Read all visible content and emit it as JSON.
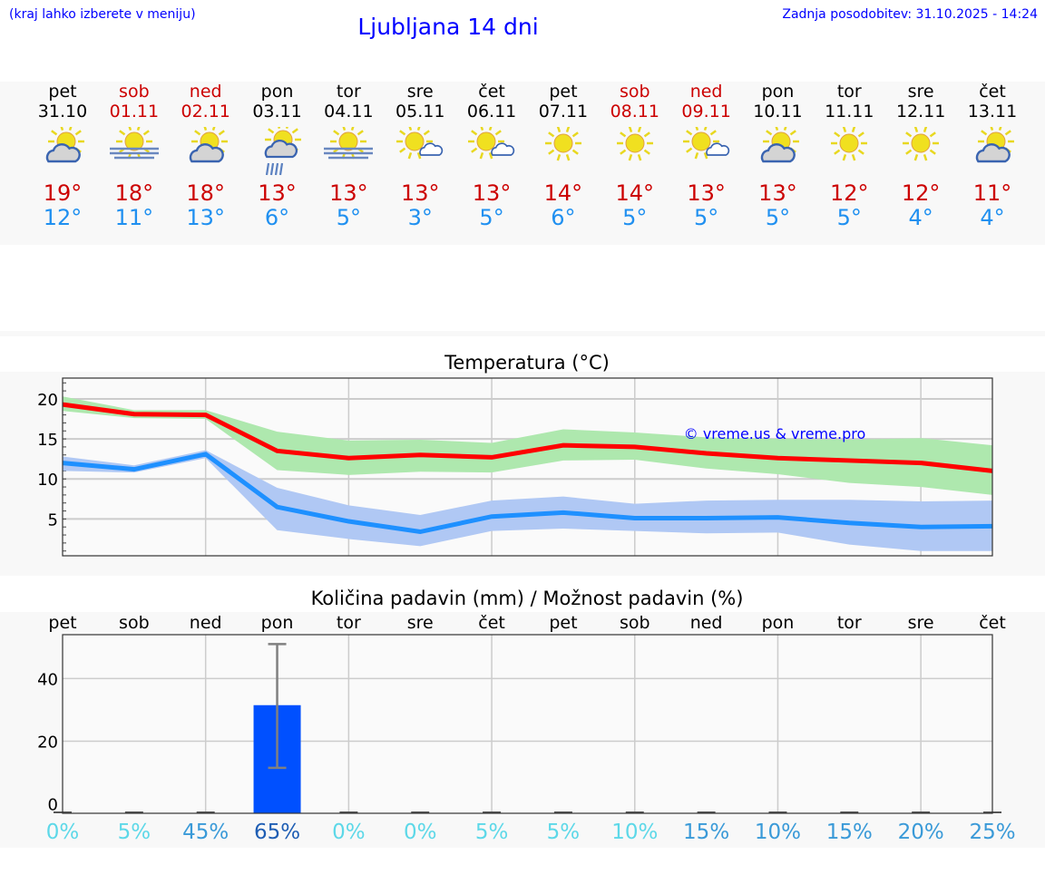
{
  "header": {
    "hint": "(kraj lahko izberete v meniju)",
    "title": "Ljubljana 14 dni",
    "updated": "Zadnja posodobitev: 31.10.2025 - 14:24"
  },
  "colors": {
    "weekday": "#000000",
    "weekend": "#cc0000",
    "high": "#cc0000",
    "low": "#2090f0",
    "link": "#0000ff"
  },
  "days": [
    {
      "name": "pet",
      "date": "31.10",
      "weekend": false,
      "icon": "partly-cloudy-icon",
      "high": "19°",
      "low": "12°"
    },
    {
      "name": "sob",
      "date": "01.11",
      "weekend": true,
      "icon": "fog-sun-icon",
      "high": "18°",
      "low": "11°"
    },
    {
      "name": "ned",
      "date": "02.11",
      "weekend": true,
      "icon": "partly-cloudy-icon",
      "high": "18°",
      "low": "13°"
    },
    {
      "name": "pon",
      "date": "03.11",
      "weekend": false,
      "icon": "rain-sun-icon",
      "high": "13°",
      "low": "6°"
    },
    {
      "name": "tor",
      "date": "04.11",
      "weekend": false,
      "icon": "fog-sun-icon",
      "high": "13°",
      "low": "5°"
    },
    {
      "name": "sre",
      "date": "05.11",
      "weekend": false,
      "icon": "sun-small-cloud-icon",
      "high": "13°",
      "low": "3°"
    },
    {
      "name": "čet",
      "date": "06.11",
      "weekend": false,
      "icon": "sun-small-cloud-icon",
      "high": "13°",
      "low": "5°"
    },
    {
      "name": "pet",
      "date": "07.11",
      "weekend": false,
      "icon": "sun-icon",
      "high": "14°",
      "low": "6°"
    },
    {
      "name": "sob",
      "date": "08.11",
      "weekend": true,
      "icon": "sun-icon",
      "high": "14°",
      "low": "5°"
    },
    {
      "name": "ned",
      "date": "09.11",
      "weekend": true,
      "icon": "sun-small-cloud-icon",
      "high": "13°",
      "low": "5°"
    },
    {
      "name": "pon",
      "date": "10.11",
      "weekend": false,
      "icon": "partly-cloudy-icon",
      "high": "13°",
      "low": "5°"
    },
    {
      "name": "tor",
      "date": "11.11",
      "weekend": false,
      "icon": "sun-icon",
      "high": "12°",
      "low": "5°"
    },
    {
      "name": "sre",
      "date": "12.11",
      "weekend": false,
      "icon": "sun-icon",
      "high": "12°",
      "low": "4°"
    },
    {
      "name": "čet",
      "date": "13.11",
      "weekend": false,
      "icon": "partly-cloudy-icon",
      "high": "11°",
      "low": "4°"
    }
  ],
  "chart_data": [
    {
      "type": "line",
      "title": "Temperatura (°C)",
      "x": [
        "31.10",
        "01.11",
        "02.11",
        "03.11",
        "04.11",
        "05.11",
        "06.11",
        "07.11",
        "08.11",
        "09.11",
        "10.11",
        "11.11",
        "12.11",
        "13.11"
      ],
      "ylim": [
        0.4,
        22.6
      ],
      "yticks": [
        5,
        10,
        15,
        20
      ],
      "grid": true,
      "watermark": "© vreme.us & vreme.pro",
      "series": [
        {
          "color": "#ff0000",
          "values": [
            19.3,
            18.1,
            18,
            13.5,
            12.6,
            13,
            12.7,
            14.2,
            14,
            13.2,
            12.6,
            12.3,
            12,
            11
          ],
          "band_color": "#aee8ae",
          "band_upper": [
            20.3,
            18.6,
            18.6,
            15.9,
            14.8,
            14.9,
            14.5,
            16.2,
            15.8,
            15.2,
            15,
            14.9,
            15.1,
            14.2
          ],
          "band_lower": [
            18.5,
            17.6,
            17.5,
            11.1,
            10.5,
            10.9,
            10.8,
            12.3,
            12.4,
            11.3,
            10.6,
            9.5,
            9,
            8
          ]
        },
        {
          "color": "#1e90ff",
          "values": [
            12,
            11.2,
            13.1,
            6.5,
            4.7,
            3.4,
            5.3,
            5.8,
            5.1,
            5.1,
            5.2,
            4.5,
            4,
            4.1
          ],
          "band_color": "#b0c8f4",
          "band_upper": [
            12.8,
            11.7,
            13.6,
            8.9,
            6.7,
            5.5,
            7.3,
            7.8,
            6.9,
            7.3,
            7.4,
            7.4,
            7.2,
            7.3
          ],
          "band_lower": [
            11,
            10.8,
            12.6,
            3.6,
            2.5,
            1.6,
            3.5,
            3.8,
            3.5,
            3.2,
            3.3,
            1.8,
            1,
            1
          ]
        }
      ]
    },
    {
      "type": "bar",
      "title": "Količina padavin (mm) / Možnost padavin (%)",
      "categories": [
        "pet",
        "sob",
        "ned",
        "pon",
        "tor",
        "sre",
        "čet",
        "pet",
        "sob",
        "ned",
        "pon",
        "tor",
        "sre",
        "čet"
      ],
      "values": [
        0,
        0,
        0,
        31.5,
        0,
        0,
        0,
        0,
        0,
        0,
        0,
        0,
        0,
        0
      ],
      "error_low": [
        null,
        null,
        null,
        11.5,
        null,
        null,
        null,
        null,
        null,
        null,
        null,
        null,
        null,
        null
      ],
      "error_high": [
        null,
        null,
        null,
        51,
        null,
        null,
        null,
        null,
        null,
        null,
        null,
        null,
        null,
        null
      ],
      "ylim": [
        -3,
        54
      ],
      "yticks": [
        0,
        20,
        40
      ],
      "grid": true,
      "bar_color": "#0050ff",
      "probability": [
        "0%",
        "5%",
        "45%",
        "65%",
        "0%",
        "0%",
        "5%",
        "5%",
        "10%",
        "15%",
        "10%",
        "15%",
        "20%",
        "25%"
      ],
      "probability_colors": [
        "#5dd8e8",
        "#5dd8e8",
        "#3a9ad8",
        "#1f5eb4",
        "#5dd8e8",
        "#5dd8e8",
        "#5dd8e8",
        "#5dd8e8",
        "#5dd8e8",
        "#3a9ad8",
        "#3a9ad8",
        "#3a9ad8",
        "#3a9ad8",
        "#3a9ad8"
      ]
    }
  ]
}
